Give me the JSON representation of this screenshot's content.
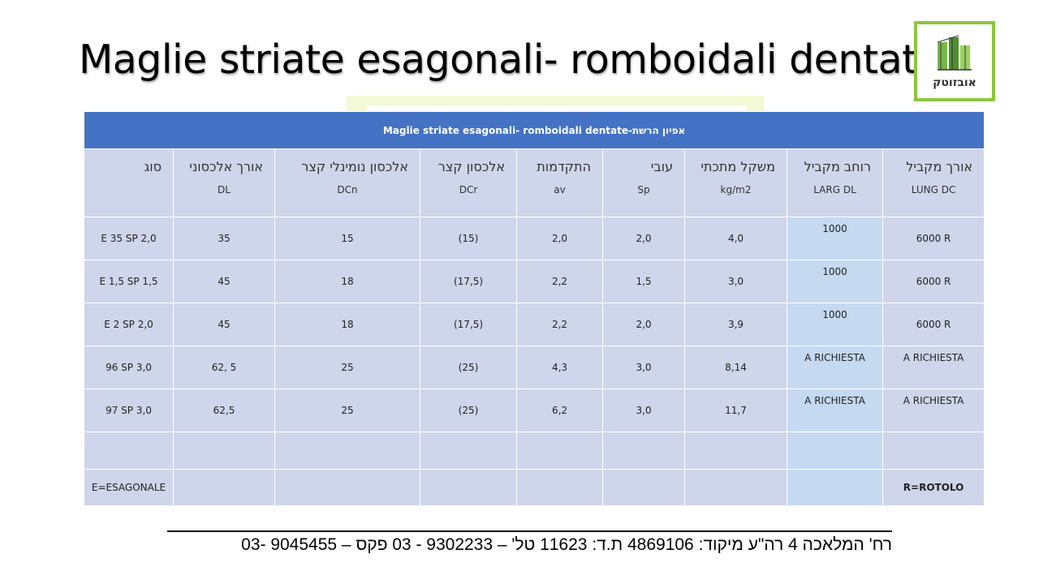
{
  "title": "Maglie striate esagonali- romboidali dentate",
  "logo": {
    "text": "אובזוטק"
  },
  "table": {
    "banner": "Maglie striate esagonali- romboidali dentate-אפיון הרשת",
    "headers": [
      {
        "he": "סוג",
        "code": ""
      },
      {
        "he": "אורך אלכסוני",
        "code": "DL"
      },
      {
        "he": "אלכסון נומינלי קצר",
        "code": "DCn"
      },
      {
        "he": "אלכסון קצר",
        "code": "DCr"
      },
      {
        "he": "התקדמות",
        "code": "av"
      },
      {
        "he": "עובי",
        "code": "Sp"
      },
      {
        "he": "משקל מתכתי",
        "code": "kg/m2"
      },
      {
        "he": "רוחב מקביל",
        "code": "LARG DL"
      },
      {
        "he": "אורך מקביל",
        "code": "LUNG DC"
      }
    ],
    "rows": [
      [
        "E 35 SP  2,0",
        "35",
        "15",
        "(15)",
        "2,0",
        "2,0",
        "4,0",
        "1000",
        "6000 R"
      ],
      [
        "E 1,5 SP  1,5",
        "45",
        "18",
        "(17,5)",
        "2,2",
        "1,5",
        "3,0",
        "1000",
        "6000 R"
      ],
      [
        "E 2 SP  2,0",
        "45",
        "18",
        "(17,5)",
        "2,2",
        "2,0",
        "3,9",
        "1000",
        "6000 R"
      ],
      [
        "96 SP  3,0",
        "62, 5",
        "25",
        "(25)",
        "4,3",
        "3,0",
        "8,14",
        "A RICHIESTA",
        "A RICHIESTA"
      ],
      [
        "97 SP  3,0",
        "62,5",
        "25",
        "(25)",
        "6,2",
        "3,0",
        "11,7",
        "A RICHIESTA",
        "A RICHIESTA"
      ]
    ],
    "note_left": "E=ESAGONALE",
    "note_right": "R=ROTOLO"
  },
  "footer": "רח' המלאכה 4 רה\"ע מיקוד: 4869106 ת.ד: 11623 טל' – 9302233 - 03   פקס – 9045455 -03"
}
